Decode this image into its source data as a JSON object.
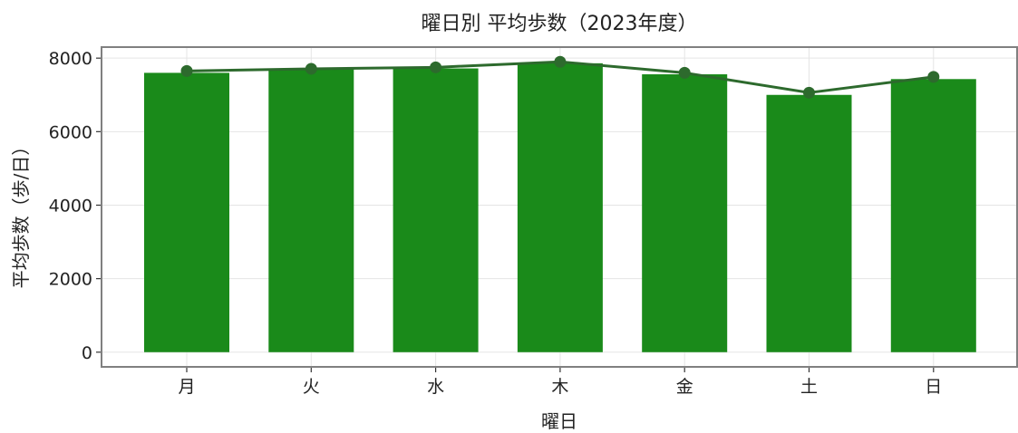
{
  "chart_data": {
    "type": "bar",
    "title": "曜日別 平均歩数（2023年度）",
    "xlabel": "曜日",
    "ylabel": "平均歩数（歩/日）",
    "categories": [
      "月",
      "火",
      "水",
      "木",
      "金",
      "土",
      "日"
    ],
    "series": [
      {
        "type": "bar",
        "values": [
          7600,
          7700,
          7720,
          7860,
          7560,
          7000,
          7430
        ]
      },
      {
        "type": "line",
        "values": [
          7650,
          7710,
          7750,
          7900,
          7600,
          7060,
          7490
        ]
      }
    ],
    "ylim": [
      -400,
      8300
    ],
    "yticks": [
      0,
      2000,
      4000,
      6000,
      8000
    ],
    "grid": true,
    "legend": "none",
    "colors": {
      "bar": "#1a8a1a",
      "line": "#2d6a2d",
      "marker": "#2d6a2d"
    }
  }
}
